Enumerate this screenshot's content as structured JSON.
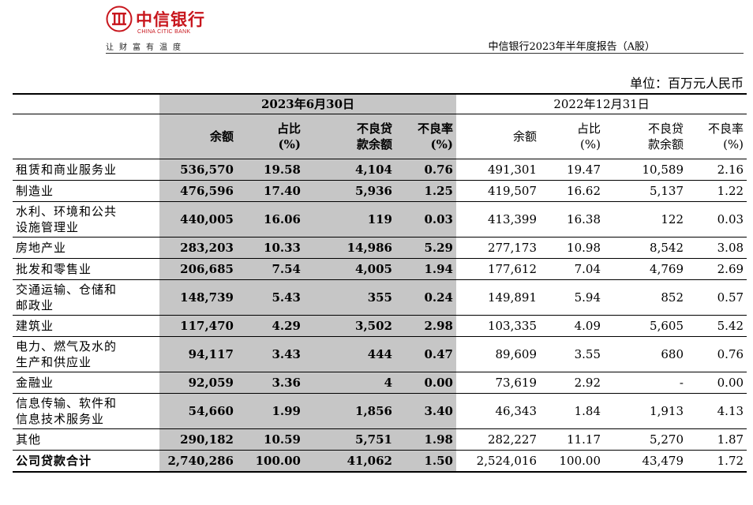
{
  "header": {
    "logo_cn": "中信银行",
    "logo_en": "CHINA CITIC BANK",
    "slogan": "让财富有温度",
    "report_title": "中信银行2023年半年度报告（A股）",
    "brand_color": "#c8161d"
  },
  "unit": "单位：百万元人民币",
  "table": {
    "period_current": "2023年6月30日",
    "period_prior": "2022年12月31日",
    "columns": {
      "balance": "余额",
      "share_line1": "占比",
      "share_line2": "(%)",
      "npl_line1": "不良贷",
      "npl_line2": "款余额",
      "npl_ratio_line1": "不良率",
      "npl_ratio_line2": "(%)"
    },
    "rows": [
      {
        "label": [
          "租赁和商业服务业"
        ],
        "cur": [
          "536,570",
          "19.58",
          "4,104",
          "0.76"
        ],
        "prev": [
          "491,301",
          "19.47",
          "10,589",
          "2.16"
        ]
      },
      {
        "label": [
          "制造业"
        ],
        "cur": [
          "476,596",
          "17.40",
          "5,936",
          "1.25"
        ],
        "prev": [
          "419,507",
          "16.62",
          "5,137",
          "1.22"
        ]
      },
      {
        "label": [
          "水利、环境和公共",
          "设施管理业"
        ],
        "cur": [
          "440,005",
          "16.06",
          "119",
          "0.03"
        ],
        "prev": [
          "413,399",
          "16.38",
          "122",
          "0.03"
        ]
      },
      {
        "label": [
          "房地产业"
        ],
        "cur": [
          "283,203",
          "10.33",
          "14,986",
          "5.29"
        ],
        "prev": [
          "277,173",
          "10.98",
          "8,542",
          "3.08"
        ]
      },
      {
        "label": [
          "批发和零售业"
        ],
        "cur": [
          "206,685",
          "7.54",
          "4,005",
          "1.94"
        ],
        "prev": [
          "177,612",
          "7.04",
          "4,769",
          "2.69"
        ]
      },
      {
        "label": [
          "交通运输、仓储和",
          "邮政业"
        ],
        "cur": [
          "148,739",
          "5.43",
          "355",
          "0.24"
        ],
        "prev": [
          "149,891",
          "5.94",
          "852",
          "0.57"
        ]
      },
      {
        "label": [
          "建筑业"
        ],
        "cur": [
          "117,470",
          "4.29",
          "3,502",
          "2.98"
        ],
        "prev": [
          "103,335",
          "4.09",
          "5,605",
          "5.42"
        ]
      },
      {
        "label": [
          "电力、燃气及水的",
          "生产和供应业"
        ],
        "cur": [
          "94,117",
          "3.43",
          "444",
          "0.47"
        ],
        "prev": [
          "89,609",
          "3.55",
          "680",
          "0.76"
        ]
      },
      {
        "label": [
          "金融业"
        ],
        "cur": [
          "92,059",
          "3.36",
          "4",
          "0.00"
        ],
        "prev": [
          "73,619",
          "2.92",
          "-",
          "0.00"
        ]
      },
      {
        "label": [
          "信息传输、软件和",
          "信息技术服务业"
        ],
        "cur": [
          "54,660",
          "1.99",
          "1,856",
          "3.40"
        ],
        "prev": [
          "46,343",
          "1.84",
          "1,913",
          "4.13"
        ]
      },
      {
        "label": [
          "其他"
        ],
        "cur": [
          "290,182",
          "10.59",
          "5,751",
          "1.98"
        ],
        "prev": [
          "282,227",
          "11.17",
          "5,270",
          "1.87"
        ]
      }
    ],
    "total": {
      "label": "公司贷款合计",
      "cur": [
        "2,740,286",
        "100.00",
        "41,062",
        "1.50"
      ],
      "prev": [
        "2,524,016",
        "100.00",
        "43,479",
        "1.72"
      ]
    }
  }
}
